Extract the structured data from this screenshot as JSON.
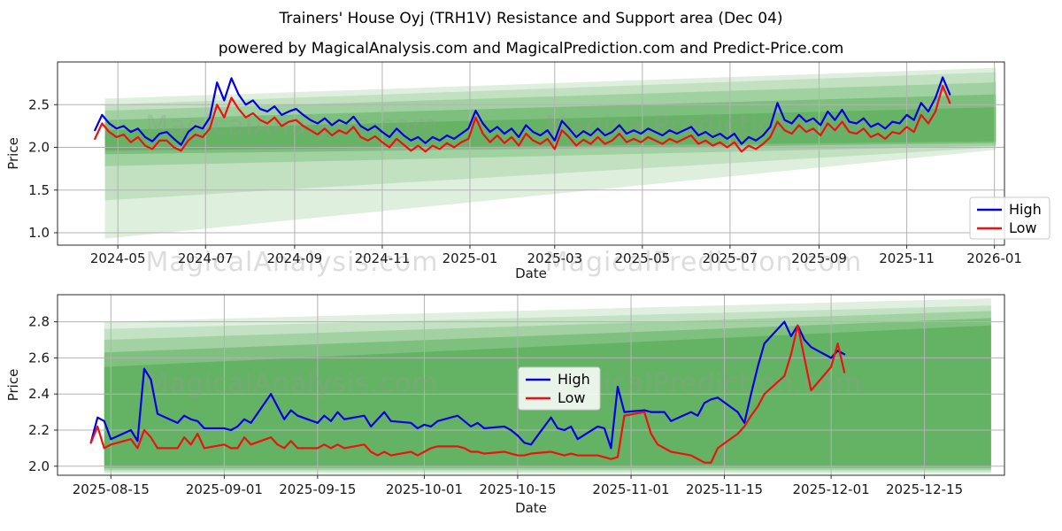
{
  "figure": {
    "title": "Trainers' House Oyj (TRH1V) Resistance and Support area (Dec 04)",
    "subtitle": "powered by MagicalAnalysis.com and MagicalPrediction.com and Predict-Price.com"
  },
  "watermarks": {
    "analysis": "MagicalAnalysis.com",
    "prediction": "MagicalPrediction.com"
  },
  "colors": {
    "high": "#0000e0",
    "low": "#ee1111",
    "band_green": "#008000",
    "grid": "#b3b3b3",
    "spine": "#2a2a2a",
    "tick_text": "#191919",
    "watermark": "#9a9a9a",
    "legend_border": "#c9c9c9"
  },
  "chart_data": [
    {
      "type": "line",
      "title": "",
      "xlabel": "Date",
      "ylabel": "Price",
      "grid": true,
      "x_unit": "days since 2024-03-20",
      "x_range": [
        0,
        659
      ],
      "ylim": [
        0.855,
        3.0
      ],
      "yticks": [
        {
          "v": 1.0,
          "label": "1.0"
        },
        {
          "v": 1.5,
          "label": "1.5"
        },
        {
          "v": 2.0,
          "label": "2.0"
        },
        {
          "v": 2.5,
          "label": "2.5"
        }
      ],
      "xticks": [
        {
          "pos": 42,
          "label": "2024-05"
        },
        {
          "pos": 103,
          "label": "2024-07"
        },
        {
          "pos": 165,
          "label": "2024-09"
        },
        {
          "pos": 226,
          "label": "2024-11"
        },
        {
          "pos": 287,
          "label": "2025-01"
        },
        {
          "pos": 346,
          "label": "2025-03"
        },
        {
          "pos": 407,
          "label": "2025-05"
        },
        {
          "pos": 468,
          "label": "2025-07"
        },
        {
          "pos": 530,
          "label": "2025-09"
        },
        {
          "pos": 591,
          "label": "2025-11"
        },
        {
          "pos": 652,
          "label": "2026-01"
        }
      ],
      "legend": {
        "position": "lower right",
        "items": [
          {
            "label": "High",
            "color": "#0000e0"
          },
          {
            "label": "Low",
            "color": "#ee1111"
          }
        ]
      },
      "bands": [
        {
          "alpha": 0.13,
          "points": [
            [
              33,
              0.93
            ],
            [
              653,
              1.97
            ],
            [
              653,
              2.93
            ],
            [
              33,
              2.57
            ]
          ]
        },
        {
          "alpha": 0.13,
          "points": [
            [
              33,
              1.38
            ],
            [
              653,
              2.0
            ],
            [
              653,
              2.88
            ],
            [
              33,
              2.5
            ]
          ]
        },
        {
          "alpha": 0.17,
          "points": [
            [
              33,
              1.78
            ],
            [
              653,
              2.02
            ],
            [
              653,
              2.76
            ],
            [
              33,
              2.43
            ]
          ]
        },
        {
          "alpha": 0.22,
          "points": [
            [
              33,
              1.92
            ],
            [
              653,
              2.05
            ],
            [
              653,
              2.62
            ],
            [
              33,
              2.32
            ]
          ]
        },
        {
          "alpha": 0.18,
          "points": [
            [
              33,
              1.96
            ],
            [
              653,
              2.07
            ],
            [
              653,
              2.47
            ],
            [
              33,
              2.2
            ]
          ]
        }
      ],
      "x": [
        26,
        31,
        36,
        41,
        46,
        51,
        56,
        61,
        66,
        71,
        76,
        81,
        86,
        91,
        96,
        101,
        106,
        111,
        116,
        121,
        126,
        131,
        136,
        141,
        146,
        151,
        156,
        161,
        166,
        171,
        176,
        181,
        186,
        191,
        196,
        201,
        206,
        211,
        216,
        221,
        226,
        231,
        236,
        241,
        246,
        251,
        256,
        261,
        266,
        271,
        276,
        281,
        286,
        291,
        296,
        301,
        306,
        311,
        316,
        321,
        326,
        331,
        336,
        341,
        346,
        351,
        356,
        361,
        366,
        371,
        376,
        381,
        386,
        391,
        396,
        401,
        406,
        411,
        416,
        421,
        426,
        431,
        436,
        441,
        446,
        451,
        456,
        461,
        466,
        471,
        476,
        481,
        486,
        491,
        496,
        501,
        506,
        511,
        516,
        521,
        526,
        531,
        536,
        541,
        546,
        551,
        556,
        561,
        566,
        571,
        576,
        581,
        586,
        591,
        596,
        601,
        606,
        611,
        616,
        621
      ],
      "series": [
        {
          "name": "High",
          "color": "#0000e0",
          "y": [
            2.2,
            2.38,
            2.28,
            2.22,
            2.25,
            2.18,
            2.22,
            2.12,
            2.07,
            2.16,
            2.18,
            2.1,
            2.03,
            2.18,
            2.25,
            2.22,
            2.35,
            2.76,
            2.55,
            2.81,
            2.62,
            2.5,
            2.55,
            2.45,
            2.42,
            2.48,
            2.38,
            2.42,
            2.45,
            2.38,
            2.32,
            2.28,
            2.34,
            2.26,
            2.32,
            2.28,
            2.36,
            2.25,
            2.2,
            2.25,
            2.18,
            2.12,
            2.22,
            2.14,
            2.08,
            2.12,
            2.05,
            2.12,
            2.08,
            2.14,
            2.1,
            2.16,
            2.22,
            2.43,
            2.28,
            2.18,
            2.24,
            2.16,
            2.22,
            2.12,
            2.26,
            2.18,
            2.14,
            2.2,
            2.08,
            2.31,
            2.22,
            2.12,
            2.19,
            2.14,
            2.22,
            2.14,
            2.18,
            2.26,
            2.16,
            2.2,
            2.16,
            2.22,
            2.18,
            2.14,
            2.2,
            2.16,
            2.2,
            2.24,
            2.14,
            2.18,
            2.12,
            2.16,
            2.1,
            2.16,
            2.04,
            2.12,
            2.08,
            2.14,
            2.24,
            2.52,
            2.32,
            2.28,
            2.38,
            2.3,
            2.34,
            2.26,
            2.42,
            2.32,
            2.44,
            2.3,
            2.28,
            2.34,
            2.24,
            2.28,
            2.22,
            2.3,
            2.28,
            2.38,
            2.32,
            2.52,
            2.42,
            2.58,
            2.82,
            2.62
          ]
        },
        {
          "name": "Low",
          "color": "#ee1111",
          "y": [
            2.1,
            2.28,
            2.18,
            2.12,
            2.15,
            2.06,
            2.12,
            2.02,
            1.98,
            2.08,
            2.08,
            2.0,
            1.96,
            2.08,
            2.15,
            2.12,
            2.22,
            2.5,
            2.35,
            2.58,
            2.45,
            2.35,
            2.4,
            2.32,
            2.28,
            2.35,
            2.25,
            2.3,
            2.32,
            2.25,
            2.2,
            2.15,
            2.22,
            2.14,
            2.2,
            2.16,
            2.24,
            2.12,
            2.08,
            2.13,
            2.06,
            2.0,
            2.1,
            2.03,
            1.96,
            2.02,
            1.95,
            2.02,
            1.98,
            2.05,
            2.0,
            2.06,
            2.1,
            2.35,
            2.16,
            2.06,
            2.14,
            2.05,
            2.12,
            2.02,
            2.16,
            2.08,
            2.04,
            2.1,
            1.98,
            2.2,
            2.12,
            2.02,
            2.09,
            2.04,
            2.12,
            2.04,
            2.08,
            2.16,
            2.06,
            2.1,
            2.06,
            2.12,
            2.08,
            2.04,
            2.1,
            2.06,
            2.1,
            2.14,
            2.04,
            2.08,
            2.02,
            2.06,
            2.0,
            2.06,
            1.95,
            2.02,
            1.98,
            2.04,
            2.12,
            2.3,
            2.2,
            2.16,
            2.26,
            2.18,
            2.22,
            2.14,
            2.28,
            2.2,
            2.3,
            2.18,
            2.16,
            2.22,
            2.12,
            2.16,
            2.1,
            2.18,
            2.16,
            2.24,
            2.18,
            2.38,
            2.28,
            2.42,
            2.72,
            2.52
          ]
        }
      ]
    },
    {
      "type": "line",
      "title": "",
      "xlabel": "Date",
      "ylabel": "Price",
      "grid": true,
      "x_unit": "days since 2025-08-07",
      "x_range": [
        0,
        142
      ],
      "ylim": [
        1.95,
        2.95
      ],
      "yticks": [
        {
          "v": 2.0,
          "label": "2.0"
        },
        {
          "v": 2.2,
          "label": "2.2"
        },
        {
          "v": 2.4,
          "label": "2.4"
        },
        {
          "v": 2.6,
          "label": "2.6"
        },
        {
          "v": 2.8,
          "label": "2.8"
        }
      ],
      "xticks": [
        {
          "pos": 8,
          "label": "2025-08-15"
        },
        {
          "pos": 25,
          "label": "2025-09-01"
        },
        {
          "pos": 39,
          "label": "2025-09-15"
        },
        {
          "pos": 55,
          "label": "2025-10-01"
        },
        {
          "pos": 69,
          "label": "2025-10-15"
        },
        {
          "pos": 86,
          "label": "2025-11-01"
        },
        {
          "pos": 100,
          "label": "2025-11-15"
        },
        {
          "pos": 116,
          "label": "2025-12-01"
        },
        {
          "pos": 130,
          "label": "2025-12-15"
        }
      ],
      "legend": {
        "position": "center",
        "items": [
          {
            "label": "High",
            "color": "#0000e0"
          },
          {
            "label": "Low",
            "color": "#ee1111"
          }
        ]
      },
      "bands": [
        {
          "alpha": 0.12,
          "points": [
            [
              7,
              1.96
            ],
            [
              140,
              1.96
            ],
            [
              140,
              2.93
            ],
            [
              7,
              2.8
            ]
          ]
        },
        {
          "alpha": 0.13,
          "points": [
            [
              7,
              1.97
            ],
            [
              140,
              1.97
            ],
            [
              140,
              2.89
            ],
            [
              7,
              2.76
            ]
          ]
        },
        {
          "alpha": 0.17,
          "points": [
            [
              7,
              1.98
            ],
            [
              140,
              1.98
            ],
            [
              140,
              2.86
            ],
            [
              7,
              2.7
            ]
          ]
        },
        {
          "alpha": 0.22,
          "points": [
            [
              7,
              1.99
            ],
            [
              140,
              1.99
            ],
            [
              140,
              2.82
            ],
            [
              7,
              2.63
            ]
          ]
        },
        {
          "alpha": 0.2,
          "points": [
            [
              7,
              2.0
            ],
            [
              140,
              2.0
            ],
            [
              140,
              2.78
            ],
            [
              7,
              2.55
            ]
          ]
        }
      ],
      "x": [
        5,
        6,
        7,
        8,
        11,
        12,
        13,
        14,
        15,
        18,
        19,
        20,
        21,
        22,
        25,
        26,
        27,
        28,
        29,
        32,
        33,
        34,
        35,
        36,
        39,
        40,
        41,
        42,
        43,
        46,
        47,
        48,
        49,
        50,
        53,
        54,
        55,
        56,
        57,
        60,
        61,
        62,
        63,
        64,
        67,
        68,
        69,
        70,
        71,
        74,
        75,
        76,
        77,
        78,
        81,
        82,
        83,
        84,
        85,
        88,
        89,
        90,
        91,
        92,
        95,
        96,
        97,
        98,
        99,
        102,
        103,
        104,
        105,
        106,
        109,
        110,
        111,
        112,
        113,
        116,
        117,
        118
      ],
      "series": [
        {
          "name": "High",
          "color": "#0000e0",
          "y": [
            2.13,
            2.27,
            2.25,
            2.15,
            2.2,
            2.14,
            2.54,
            2.48,
            2.29,
            2.24,
            2.28,
            2.26,
            2.25,
            2.21,
            2.21,
            2.2,
            2.22,
            2.26,
            2.24,
            2.4,
            2.33,
            2.26,
            2.31,
            2.28,
            2.24,
            2.28,
            2.25,
            2.3,
            2.26,
            2.28,
            2.22,
            2.26,
            2.3,
            2.25,
            2.24,
            2.21,
            2.23,
            2.22,
            2.25,
            2.28,
            2.25,
            2.22,
            2.24,
            2.21,
            2.22,
            2.2,
            2.17,
            2.13,
            2.12,
            2.27,
            2.21,
            2.2,
            2.22,
            2.15,
            2.22,
            2.21,
            2.1,
            2.44,
            2.3,
            2.31,
            2.3,
            2.3,
            2.3,
            2.25,
            2.3,
            2.28,
            2.35,
            2.37,
            2.38,
            2.3,
            2.24,
            2.4,
            2.55,
            2.68,
            2.8,
            2.72,
            2.78,
            2.7,
            2.66,
            2.6,
            2.64,
            2.62
          ]
        },
        {
          "name": "Low",
          "color": "#ee1111",
          "y": [
            2.13,
            2.22,
            2.1,
            2.12,
            2.15,
            2.1,
            2.2,
            2.16,
            2.1,
            2.1,
            2.16,
            2.12,
            2.18,
            2.1,
            2.12,
            2.1,
            2.1,
            2.16,
            2.12,
            2.16,
            2.12,
            2.1,
            2.14,
            2.1,
            2.1,
            2.12,
            2.1,
            2.12,
            2.1,
            2.12,
            2.08,
            2.06,
            2.08,
            2.06,
            2.08,
            2.06,
            2.08,
            2.1,
            2.11,
            2.11,
            2.1,
            2.08,
            2.08,
            2.07,
            2.08,
            2.07,
            2.06,
            2.06,
            2.07,
            2.08,
            2.07,
            2.06,
            2.07,
            2.06,
            2.06,
            2.05,
            2.04,
            2.05,
            2.28,
            2.3,
            2.18,
            2.12,
            2.1,
            2.08,
            2.06,
            2.04,
            2.02,
            2.02,
            2.1,
            2.18,
            2.22,
            2.28,
            2.33,
            2.4,
            2.5,
            2.62,
            2.78,
            2.6,
            2.42,
            2.55,
            2.68,
            2.52
          ]
        }
      ]
    }
  ]
}
